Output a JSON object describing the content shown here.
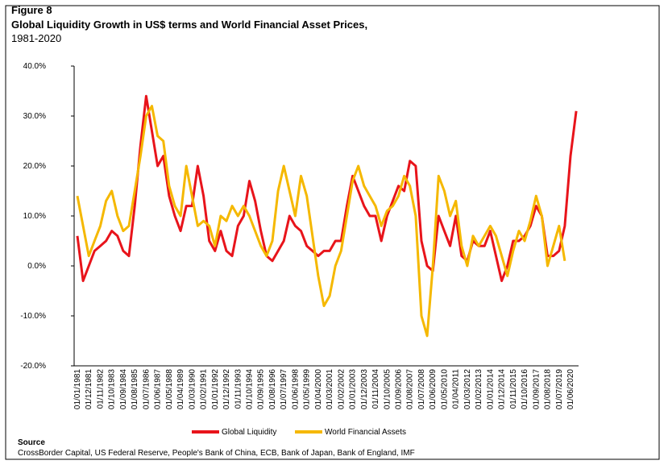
{
  "chart_data": {
    "type": "line",
    "figure_label": "Figure 8",
    "title": "Global Liquidity Growth in US$ terms and World Financial Asset Prices,",
    "subtitle": "1981-2020",
    "source_title": "Source",
    "source": "CrossBorder Capital, US Federal Reserve, People's Bank of China, ECB, Bank of Japan, Bank of England, IMF",
    "categories": [
      "01/01/1981",
      null,
      "01/12/1981",
      null,
      "01/11/1982",
      null,
      "01/10/1983",
      null,
      "01/09/1984",
      null,
      "01/08/1985",
      null,
      "01/07/1986",
      null,
      "01/06/1987",
      null,
      "01/05/1988",
      null,
      "01/04/1989",
      null,
      "01/03/1990",
      null,
      "01/02/1991",
      null,
      "01/01/1992",
      null,
      "01/12/1992",
      null,
      "01/11/1993",
      null,
      "01/10/1994",
      null,
      "01/09/1995",
      null,
      "01/08/1996",
      null,
      "01/07/1997",
      null,
      "01/06/1998",
      null,
      "01/05/1999",
      null,
      "01/04/2000",
      null,
      "01/03/2001",
      null,
      "01/02/2002",
      null,
      "01/01/2003",
      null,
      "01/12/2003",
      null,
      "01/11/2004",
      null,
      "01/10/2005",
      null,
      "01/09/2006",
      null,
      "01/08/2007",
      null,
      "01/07/2008",
      null,
      "01/06/2009",
      null,
      "01/05/2010",
      null,
      "01/04/2011",
      null,
      "01/03/2012",
      null,
      "01/02/2013",
      null,
      "01/01/2014",
      null,
      "01/12/2014",
      null,
      "01/11/2015",
      null,
      "01/10/2016",
      null,
      "01/09/2017",
      null,
      "01/08/2018",
      null,
      "01/07/2019",
      null,
      "01/06/2020",
      null
    ],
    "series": [
      {
        "name": "Global Liquidity",
        "color": "#e8141b",
        "values": [
          6,
          -3,
          0,
          3,
          4,
          5,
          7,
          6,
          3,
          2,
          12,
          24,
          34,
          27,
          20,
          22,
          14,
          10,
          7,
          12,
          12,
          20,
          14,
          5,
          3,
          7,
          3,
          2,
          8,
          10,
          17,
          13,
          7,
          2,
          1,
          3,
          5,
          10,
          8,
          7,
          4,
          3,
          2,
          3,
          3,
          5,
          5,
          12,
          18,
          15,
          12,
          10,
          10,
          5,
          10,
          13,
          16,
          15,
          21,
          20,
          5,
          0,
          -1,
          10,
          7,
          4,
          10,
          2,
          1,
          5,
          4,
          4,
          7,
          2,
          -3,
          0,
          5,
          5,
          6,
          8,
          12,
          10,
          2,
          2,
          3,
          8,
          22,
          31
        ]
      },
      {
        "name": "World Financial Assets",
        "color": "#f5b800",
        "values": [
          14,
          8,
          2,
          5,
          8,
          13,
          15,
          10,
          7,
          8,
          15,
          22,
          30,
          32,
          26,
          25,
          16,
          12,
          10,
          20,
          14,
          8,
          9,
          8,
          4,
          10,
          9,
          12,
          10,
          12,
          10,
          7,
          4,
          2,
          5,
          15,
          20,
          15,
          10,
          18,
          14,
          6,
          -2,
          -8,
          -6,
          0,
          3,
          10,
          17,
          20,
          16,
          14,
          12,
          8,
          11,
          12,
          14,
          18,
          16,
          10,
          -10,
          -14,
          0,
          18,
          15,
          10,
          13,
          4,
          0,
          6,
          4,
          6,
          8,
          6,
          2,
          -2,
          3,
          7,
          5,
          9,
          14,
          10,
          0,
          4,
          8,
          1,
          null,
          null
        ]
      }
    ],
    "ylim": [
      -20,
      40
    ],
    "yticks": [
      {
        "value": -20,
        "label": "-20.0%"
      },
      {
        "value": -10,
        "label": "-10.0%"
      },
      {
        "value": 0,
        "label": "0.0%"
      },
      {
        "value": 10,
        "label": "10.0%"
      },
      {
        "value": 20,
        "label": "20.0%"
      },
      {
        "value": 30,
        "label": "30.0%"
      },
      {
        "value": 40,
        "label": "40.0%"
      }
    ],
    "legend": "bottom"
  }
}
